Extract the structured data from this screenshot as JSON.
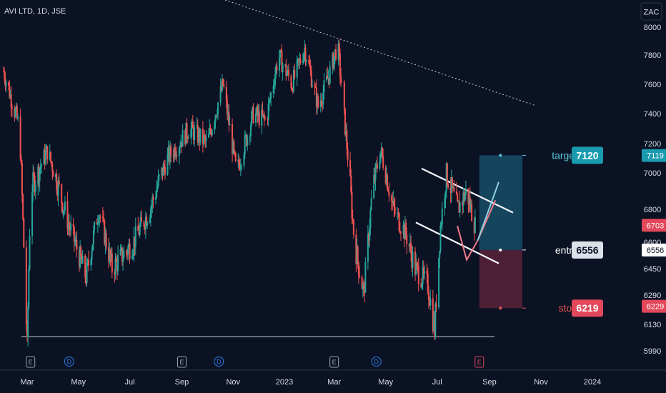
{
  "header": {
    "symbol_label": "AVI LTD, 1D, JSE"
  },
  "currency_button": "ZAC",
  "chart_data": {
    "type": "candlestick",
    "title": "AVI LTD, 1D, JSE",
    "ylim": [
      5900,
      8080
    ],
    "y_ticks": [
      {
        "label": "8000",
        "value": 8000
      },
      {
        "label": "7800",
        "value": 7800
      },
      {
        "label": "7600",
        "value": 7600
      },
      {
        "label": "7400",
        "value": 7400
      },
      {
        "label": "7200",
        "value": 7200
      },
      {
        "label": "7000",
        "value": 7000
      },
      {
        "label": "6800",
        "value": 6800
      },
      {
        "label": "6600",
        "value": 6600
      },
      {
        "label": "6450",
        "value": 6450
      },
      {
        "label": "6290",
        "value": 6290
      },
      {
        "label": "6130",
        "value": 6130
      },
      {
        "label": "5990",
        "value": 5990
      }
    ],
    "x_ticks": [
      "Mar",
      "May",
      "Jul",
      "Sep",
      "Nov",
      "2023",
      "Mar",
      "May",
      "Jul",
      "Sep",
      "Nov",
      "2024"
    ],
    "price_badges": [
      {
        "label": "7119",
        "value": 7119,
        "color": "#1a9bb0"
      },
      {
        "label": "6703",
        "value": 6703,
        "color": "#e2485a"
      },
      {
        "label": "6556",
        "value": 6556,
        "color": "#ffffff"
      },
      {
        "label": "6229",
        "value": 6229,
        "color": "#e2485a"
      }
    ],
    "trade_setup": {
      "target": {
        "label": "target",
        "value": "7120"
      },
      "entry": {
        "label": "entry",
        "value": "6556"
      },
      "stop": {
        "label": "stop",
        "value": "6219"
      }
    },
    "events": [
      "E",
      "D",
      "E",
      "D",
      "E",
      "D",
      "E"
    ],
    "colors": {
      "up": "#26a69a",
      "down": "#ef5350",
      "target_zone": "#1f6e8c",
      "stop_zone": "#7a2942"
    },
    "waypoints": [
      [
        "2022-02-01",
        7690
      ],
      [
        "2022-02-20",
        7300
      ],
      [
        "2022-03-01",
        6000
      ],
      [
        "2022-03-05",
        6900
      ],
      [
        "2022-03-25",
        7150
      ],
      [
        "2022-04-20",
        6700
      ],
      [
        "2022-05-10",
        6400
      ],
      [
        "2022-05-25",
        6800
      ],
      [
        "2022-06-10",
        6450
      ],
      [
        "2022-07-05",
        6600
      ],
      [
        "2022-07-25",
        6800
      ],
      [
        "2022-08-15",
        7100
      ],
      [
        "2022-09-10",
        7300
      ],
      [
        "2022-10-01",
        7200
      ],
      [
        "2022-10-20",
        7600
      ],
      [
        "2022-11-05",
        7000
      ],
      [
        "2022-11-25",
        7400
      ],
      [
        "2022-12-10",
        7350
      ],
      [
        "2022-12-25",
        7800
      ],
      [
        "2023-01-10",
        7600
      ],
      [
        "2023-01-25",
        7850
      ],
      [
        "2023-02-10",
        7450
      ],
      [
        "2023-02-25",
        7700
      ],
      [
        "2023-03-05",
        7880
      ],
      [
        "2023-03-15",
        7250
      ],
      [
        "2023-03-25",
        6600
      ],
      [
        "2023-04-05",
        6300
      ],
      [
        "2023-04-15",
        6900
      ],
      [
        "2023-04-25",
        7150
      ],
      [
        "2023-05-10",
        6800
      ],
      [
        "2023-05-25",
        6650
      ],
      [
        "2023-06-05",
        6450
      ],
      [
        "2023-06-20",
        6350
      ],
      [
        "2023-06-28",
        6100
      ],
      [
        "2023-07-05",
        6700
      ],
      [
        "2023-07-12",
        7000
      ],
      [
        "2023-07-25",
        6800
      ],
      [
        "2023-08-05",
        6900
      ],
      [
        "2023-08-15",
        6703
      ]
    ]
  }
}
